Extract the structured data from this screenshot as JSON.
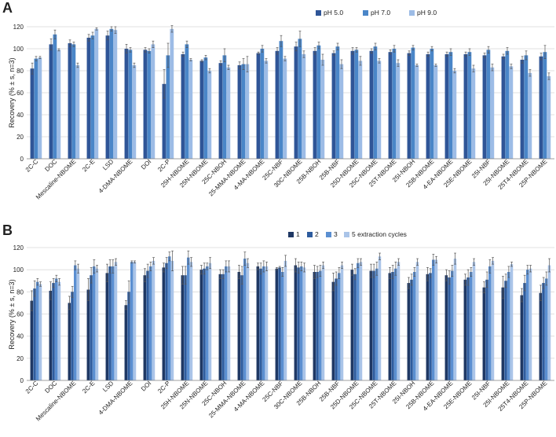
{
  "figure": {
    "panel_a_letter": "A",
    "panel_b_letter": "B"
  },
  "chart_data": [
    {
      "type": "bar",
      "panel": "A",
      "title": "",
      "xlabel": "",
      "ylabel": "Recovery (% ± s, n=3)",
      "ylim": [
        0,
        120
      ],
      "yticks": [
        "0",
        "20",
        "40",
        "60",
        "80",
        "100",
        "120"
      ],
      "grid": true,
      "legend_position": "top",
      "categories": [
        "2C-C",
        "DOC",
        "Mescaline-NBOME",
        "2C-E",
        "LSD",
        "4-DMA-NBOME",
        "DOI",
        "2C-P",
        "25H-NBOME",
        "25N-NBOME",
        "25C-NBOH",
        "25-MMA-NBOME",
        "4-MA-NBOME",
        "25C-NBF",
        "30C-NBOME",
        "25B-NBOH",
        "25B-NBF",
        "25D-NBOME",
        "25C-NBOME",
        "25T-NBOME",
        "25I-NBOH",
        "25B-NBOME",
        "4-EA-NBOME",
        "25E-NBOME",
        "25I-NBF",
        "25I-NBOME",
        "25T4-NBOME",
        "25P-NBOME"
      ],
      "series": [
        {
          "name": "pH 5.0",
          "color": "#2f5597",
          "values": [
            82,
            104,
            105,
            110,
            112,
            100,
            99,
            68,
            95,
            89,
            87,
            85,
            96,
            98,
            102,
            98,
            96,
            98,
            98,
            97,
            96,
            95,
            95,
            95,
            94,
            93,
            90,
            93
          ],
          "errors": [
            5,
            5,
            3,
            3,
            4,
            4,
            2,
            13,
            2,
            1,
            2,
            3,
            1,
            3,
            4,
            3,
            2,
            3,
            2,
            2,
            2,
            2,
            2,
            2,
            2,
            2,
            3,
            3
          ]
        },
        {
          "name": "pH 7.0",
          "color": "#4a86c8",
          "values": [
            91,
            113,
            104,
            112,
            118,
            99,
            98,
            94,
            104,
            92,
            94,
            86,
            100,
            107,
            109,
            103,
            102,
            99,
            102,
            100,
            101,
            100,
            97,
            97,
            99,
            98,
            94,
            97
          ],
          "errors": [
            2,
            4,
            2,
            3,
            2,
            2,
            2,
            11,
            3,
            2,
            6,
            5,
            3,
            5,
            7,
            3,
            3,
            2,
            3,
            3,
            2,
            2,
            3,
            3,
            3,
            3,
            4,
            6
          ]
        },
        {
          "name": "pH 9.0",
          "color": "#9dbce6",
          "values": [
            92,
            99,
            85,
            118,
            117,
            85,
            104,
            118,
            90,
            80,
            83,
            86,
            89,
            91,
            95,
            90,
            86,
            89,
            89,
            87,
            85,
            85,
            80,
            82,
            83,
            84,
            78,
            75
          ],
          "errors": [
            1,
            1,
            2,
            1,
            3,
            2,
            3,
            3,
            1,
            2,
            2,
            7,
            2,
            2,
            3,
            5,
            4,
            4,
            2,
            3,
            1,
            1,
            2,
            3,
            3,
            2,
            3,
            3
          ]
        }
      ]
    },
    {
      "type": "bar",
      "panel": "B",
      "title": "",
      "xlabel": "",
      "ylabel": "Recovery (% ± s, n=3)",
      "ylim": [
        0,
        120
      ],
      "yticks": [
        "0",
        "20",
        "40",
        "60",
        "80",
        "100",
        "120"
      ],
      "grid": true,
      "legend_position": "top",
      "categories": [
        "2C-C",
        "DOC",
        "Mescaline-NBOME",
        "2C-E",
        "LSD",
        "4-DMA-NBOME",
        "DOI",
        "2C-P",
        "25H-NBOME",
        "25N-NBOME",
        "25C-NBOH",
        "25-MMA-NBOME",
        "4-MA-NBOME",
        "25C-NBF",
        "30C-NBOME",
        "25B-NBOH",
        "25B-NBF",
        "25D-NBOME",
        "25C-NBOME",
        "25T-NBOME",
        "25I-NBOH",
        "25B-NBOME",
        "4-EA-NBOME",
        "25E-NBOME",
        "25I-NBF",
        "25I-NBOME",
        "25T4-NBOME",
        "25P-NBOME"
      ],
      "series": [
        {
          "name": "1",
          "color": "#1f3864",
          "values": [
            72,
            81,
            70,
            82,
            97,
            68,
            95,
            102,
            95,
            100,
            96,
            98,
            103,
            101,
            104,
            98,
            89,
            100,
            99,
            97,
            88,
            96,
            95,
            91,
            84,
            84,
            77,
            79
          ],
          "errors": [
            9,
            8,
            6,
            10,
            8,
            4,
            6,
            4,
            8,
            4,
            4,
            6,
            3,
            1,
            6,
            6,
            8,
            5,
            6,
            5,
            5,
            6,
            5,
            5,
            5,
            10,
            6,
            7
          ]
        },
        {
          "name": "2",
          "color": "#2e5c9e",
          "values": [
            83,
            88,
            80,
            95,
            103,
            80,
            99,
            106,
            95,
            101,
            96,
            95,
            101,
            102,
            102,
            98,
            92,
            96,
            99,
            98,
            91,
            97,
            93,
            93,
            91,
            90,
            88,
            88
          ],
          "errors": [
            7,
            4,
            5,
            7,
            6,
            10,
            6,
            5,
            8,
            5,
            4,
            8,
            5,
            1,
            5,
            5,
            6,
            5,
            6,
            6,
            5,
            4,
            6,
            7,
            7,
            6,
            7,
            5
          ]
        },
        {
          "name": "3",
          "color": "#5b8fd1",
          "values": [
            89,
            92,
            104,
            103,
            103,
            107,
            103,
            112,
            111,
            103,
            103,
            110,
            103,
            98,
            103,
            99,
            97,
            106,
            101,
            101,
            98,
            109,
            99,
            98,
            103,
            98,
            100,
            92
          ],
          "errors": [
            3,
            3,
            4,
            6,
            6,
            1,
            4,
            4,
            6,
            3,
            5,
            6,
            5,
            4,
            4,
            5,
            5,
            4,
            6,
            6,
            4,
            5,
            5,
            4,
            6,
            5,
            4,
            6
          ]
        },
        {
          "name": "5 extraction cycles",
          "color": "#aac4e8",
          "values": [
            87,
            89,
            101,
            101,
            107,
            107,
            108,
            108,
            107,
            106,
            103,
            106,
            103,
            108,
            102,
            104,
            104,
            107,
            112,
            107,
            107,
            109,
            110,
            107,
            108,
            105,
            101,
            104
          ],
          "errors": [
            2,
            3,
            4,
            3,
            3,
            1,
            3,
            9,
            4,
            5,
            5,
            4,
            4,
            5,
            4,
            3,
            3,
            3,
            3,
            3,
            3,
            3,
            5,
            3,
            3,
            2,
            3,
            6
          ]
        }
      ]
    }
  ]
}
